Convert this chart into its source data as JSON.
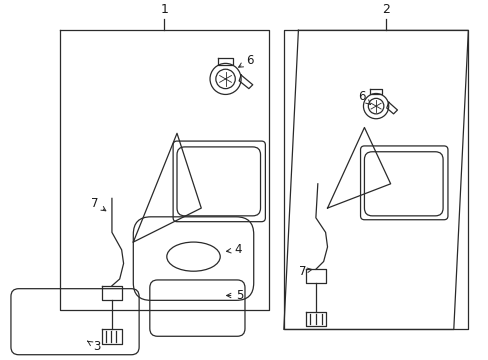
{
  "bg_color": "#ffffff",
  "line_color": "#2a2a2a",
  "label_color": "#1a1a1a",
  "fig_width": 4.89,
  "fig_height": 3.6,
  "dpi": 100,
  "lw": 0.9
}
